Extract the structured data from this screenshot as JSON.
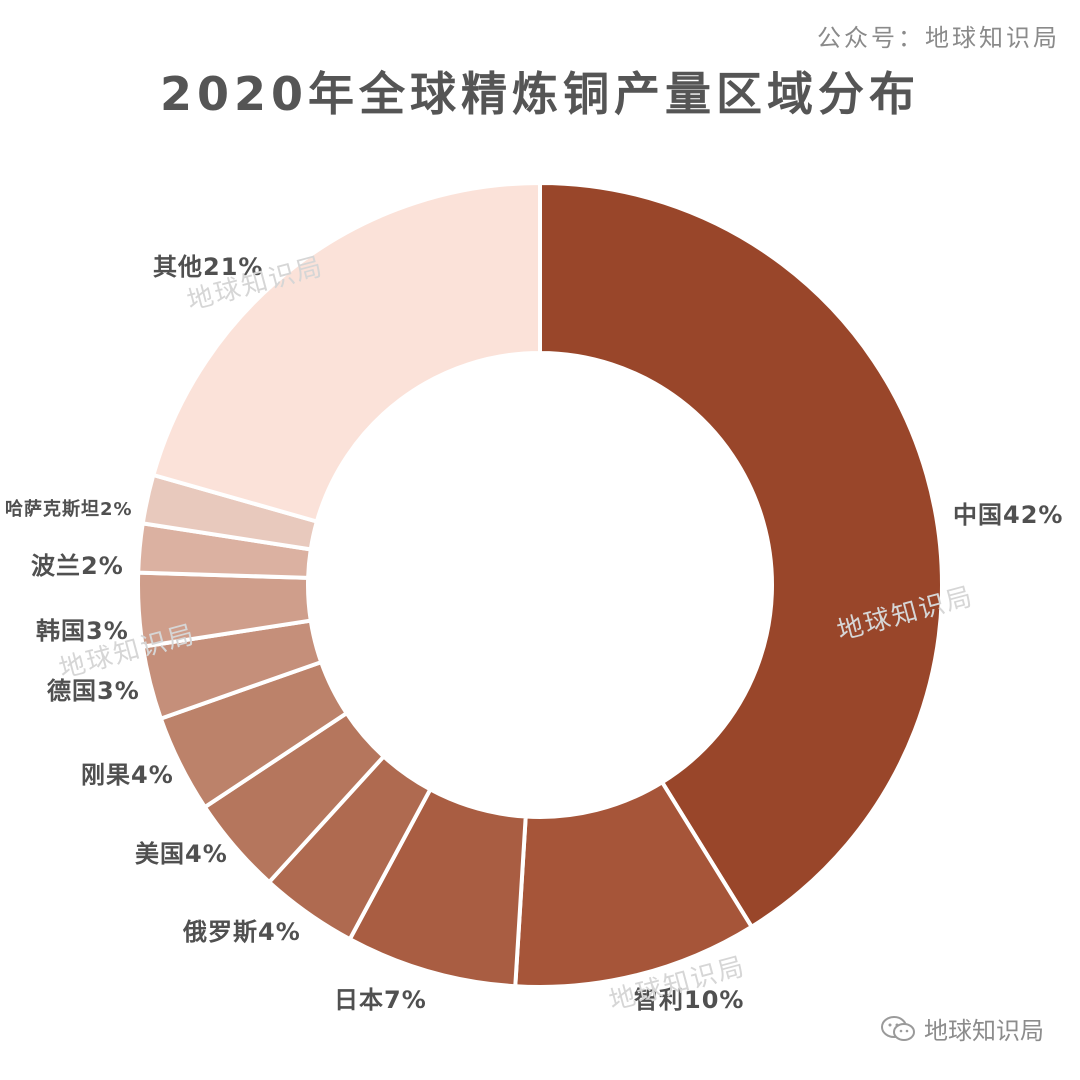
{
  "header": {
    "source": "公众号：地球知识局",
    "title": "2020年全球精炼铜产量区域分布"
  },
  "watermark_text": "地球知识局",
  "footer": {
    "brand_label": "地球知识局",
    "brand_icon": "wechat-icon"
  },
  "chart_data": {
    "type": "pie",
    "subtype": "donut",
    "title": "2020年全球精炼铜产量区域分布",
    "unit": "%",
    "slices": [
      {
        "label": "中国",
        "value": 42,
        "label_text": "中国42%",
        "color": "#99462a"
      },
      {
        "label": "智利",
        "value": 10,
        "label_text": "智利10%",
        "color": "#a65539"
      },
      {
        "label": "日本",
        "value": 7,
        "label_text": "日本7%",
        "color": "#a95d42"
      },
      {
        "label": "俄罗斯",
        "value": 4,
        "label_text": "俄罗斯4%",
        "color": "#af6a50"
      },
      {
        "label": "美国",
        "value": 4,
        "label_text": "美国4%",
        "color": "#b5765d"
      },
      {
        "label": "刚果",
        "value": 4,
        "label_text": "刚果4%",
        "color": "#bc826a"
      },
      {
        "label": "德国",
        "value": 3,
        "label_text": "德国3%",
        "color": "#c58f7a"
      },
      {
        "label": "韩国",
        "value": 3,
        "label_text": "韩国3%",
        "color": "#cf9e8b"
      },
      {
        "label": "波兰",
        "value": 2,
        "label_text": "波兰2%",
        "color": "#dbb1a1"
      },
      {
        "label": "哈萨克斯坦",
        "value": 2,
        "label_text": "哈萨克斯坦2%",
        "color": "#e8c9bd"
      },
      {
        "label": "其他",
        "value": 21,
        "label_text": "其他21%",
        "color": "#fbe2d9"
      }
    ],
    "start": "12 o'clock",
    "direction": "clockwise",
    "legend": "none"
  }
}
